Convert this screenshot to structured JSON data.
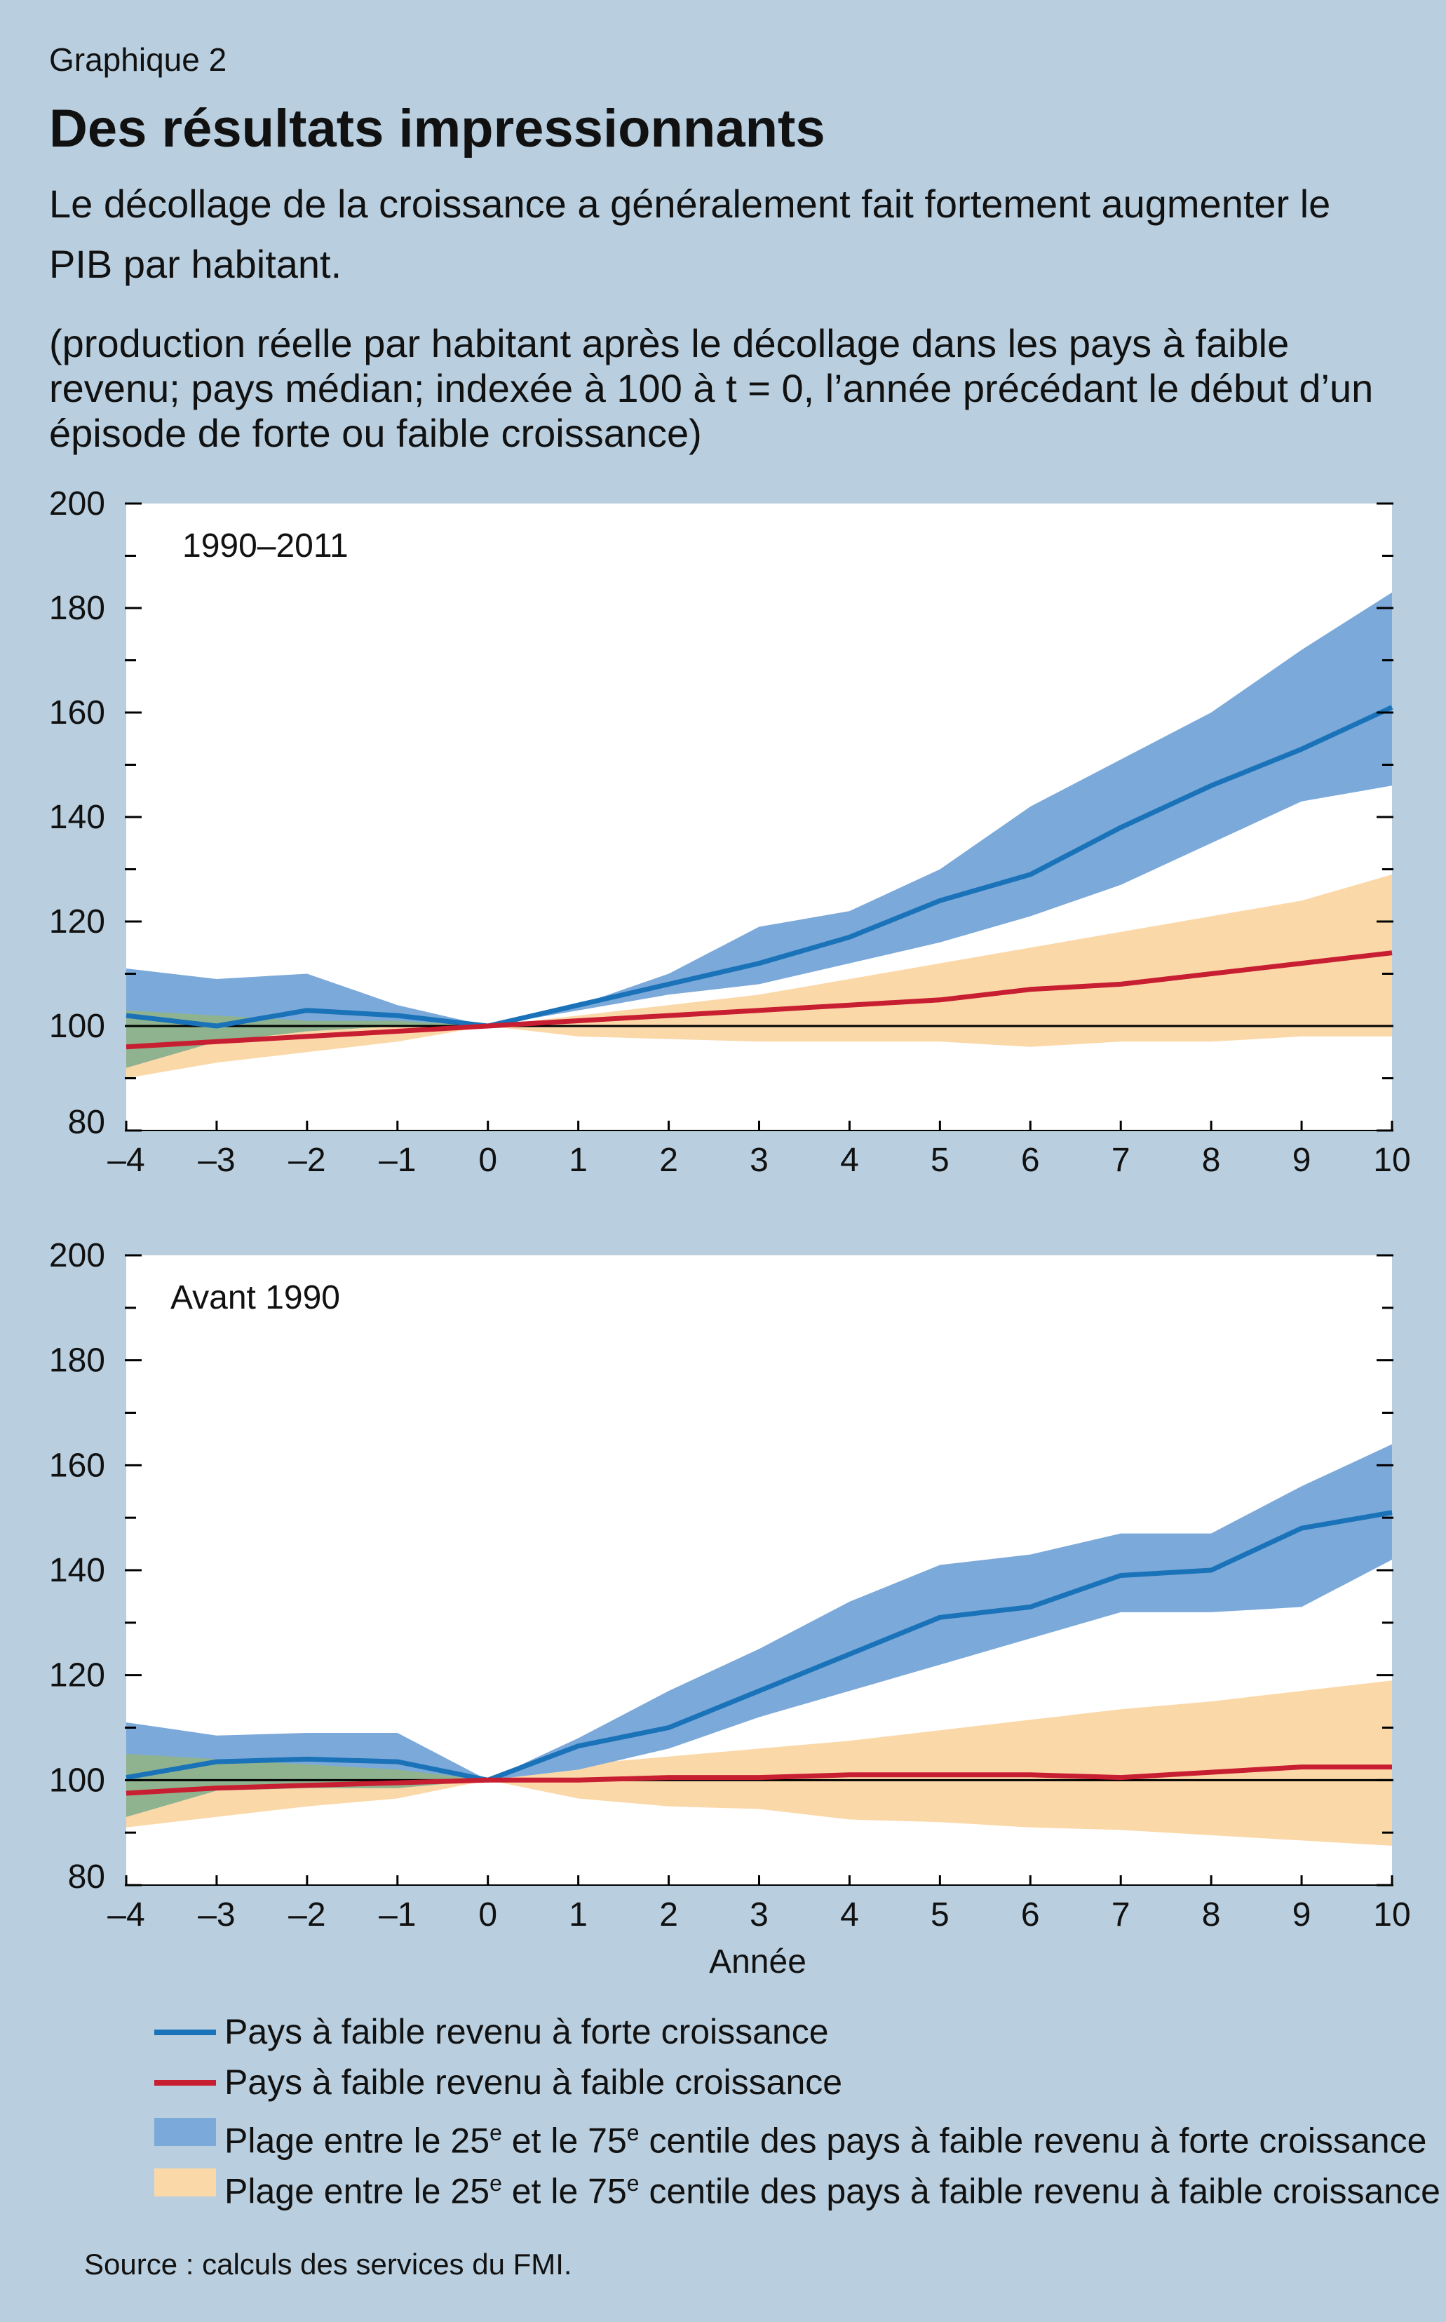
{
  "header": {
    "graph_number": "Graphique 2",
    "title": "Des résultats impressionnants",
    "subtitle": "Le décollage de la croissance a généralement fait fortement augmenter le PIB par habitant.",
    "units_note": "(production réelle par habitant après le décollage dans les pays à faible revenu; pays médian; indexée à 100 à t = 0, l’année précédant le début d’un épisode de forte ou faible croissance)"
  },
  "legend": {
    "high_line": "Pays à faible revenu à forte croissance",
    "low_line": "Pays à faible revenu à faible croissance",
    "high_band_pre": "Plage entre le 25",
    "high_band_sup1": "e",
    "high_band_mid": " et le 75",
    "high_band_sup2": "e",
    "high_band_post": " centile des pays à faible revenu à forte croissance",
    "low_band_pre": "Plage entre le 25",
    "low_band_sup1": "e",
    "low_band_mid": " et le 75",
    "low_band_sup2": "e",
    "low_band_post": " centile des pays à faible revenu à faible croissance"
  },
  "source": "Source : calculs des services du FMI.",
  "colors": {
    "background": "#b9cfdf",
    "high_line": "#1a73b8",
    "low_line": "#c81e32",
    "high_band": "#7ba9da",
    "low_band": "#fbd8a8",
    "overlap_band": "#8fb38e"
  },
  "chart_data": [
    {
      "type": "line",
      "panel_label": "1990–2011",
      "xlabel": "",
      "ylim": [
        80,
        200
      ],
      "yticks": [
        80,
        100,
        120,
        140,
        160,
        180,
        200
      ],
      "x": [
        -4,
        -3,
        -2,
        -1,
        0,
        1,
        2,
        3,
        4,
        5,
        6,
        7,
        8,
        9,
        10
      ],
      "x_tick_labels": [
        "–4",
        "–3",
        "–2",
        "–1",
        "0",
        "1",
        "2",
        "3",
        "4",
        "5",
        "6",
        "7",
        "8",
        "9",
        "10"
      ],
      "reference_line": 100,
      "series": [
        {
          "role": "high_line",
          "values": [
            102,
            100,
            103,
            102,
            100,
            104,
            108,
            112,
            117,
            124,
            129,
            138,
            146,
            153,
            161
          ]
        },
        {
          "role": "low_line",
          "values": [
            96,
            97,
            98,
            99,
            100,
            101,
            102,
            103,
            104,
            105,
            107,
            108,
            110,
            112,
            114
          ]
        }
      ],
      "bands": [
        {
          "role": "low_band",
          "upper": [
            103,
            102,
            101,
            101,
            100,
            102,
            104,
            106,
            109,
            112,
            115,
            118,
            121,
            124,
            129
          ],
          "lower": [
            90,
            93,
            95,
            97,
            100,
            98,
            97.5,
            97,
            97,
            97,
            96,
            97,
            97,
            98,
            98
          ]
        },
        {
          "role": "high_band",
          "upper": [
            111,
            109,
            110,
            104,
            100,
            104,
            110,
            119,
            122,
            130,
            142,
            151,
            160,
            172,
            183
          ],
          "lower": [
            92,
            97,
            99,
            100,
            100,
            103,
            106,
            108,
            112,
            116,
            121,
            127,
            135,
            143,
            146
          ]
        }
      ]
    },
    {
      "type": "line",
      "panel_label": "Avant 1990",
      "xlabel": "Année",
      "ylim": [
        80,
        200
      ],
      "yticks": [
        80,
        100,
        120,
        140,
        160,
        180,
        200
      ],
      "x": [
        -4,
        -3,
        -2,
        -1,
        0,
        1,
        2,
        3,
        4,
        5,
        6,
        7,
        8,
        9,
        10
      ],
      "x_tick_labels": [
        "–4",
        "–3",
        "–2",
        "–1",
        "0",
        "1",
        "2",
        "3",
        "4",
        "5",
        "6",
        "7",
        "8",
        "9",
        "10"
      ],
      "reference_line": 100,
      "series": [
        {
          "role": "high_line",
          "values": [
            100.5,
            103.5,
            104,
            103.5,
            100,
            106.5,
            110,
            117,
            124,
            131,
            133,
            139,
            140,
            148,
            151
          ]
        },
        {
          "role": "low_line",
          "values": [
            97.5,
            98.5,
            99,
            99.5,
            100,
            100,
            100.5,
            100.5,
            101,
            101,
            101,
            100.5,
            101.5,
            102.5,
            102.5
          ]
        }
      ],
      "bands": [
        {
          "role": "low_band",
          "upper": [
            105,
            104,
            103,
            102,
            100,
            103,
            104.5,
            106,
            107.5,
            109.5,
            111.5,
            113.5,
            115,
            117,
            119
          ],
          "lower": [
            91,
            93,
            95,
            96.5,
            100,
            96.5,
            95,
            94.5,
            92.5,
            92,
            91,
            90.5,
            89.5,
            88.5,
            87.5
          ]
        },
        {
          "role": "high_band",
          "upper": [
            111,
            108.5,
            109,
            109,
            100,
            108,
            117,
            125,
            134,
            141,
            143,
            147,
            147,
            156,
            164
          ],
          "lower": [
            93,
            98,
            98.5,
            98.5,
            100,
            102,
            106,
            112,
            117,
            122,
            127,
            132,
            132,
            133,
            142
          ]
        }
      ]
    }
  ]
}
